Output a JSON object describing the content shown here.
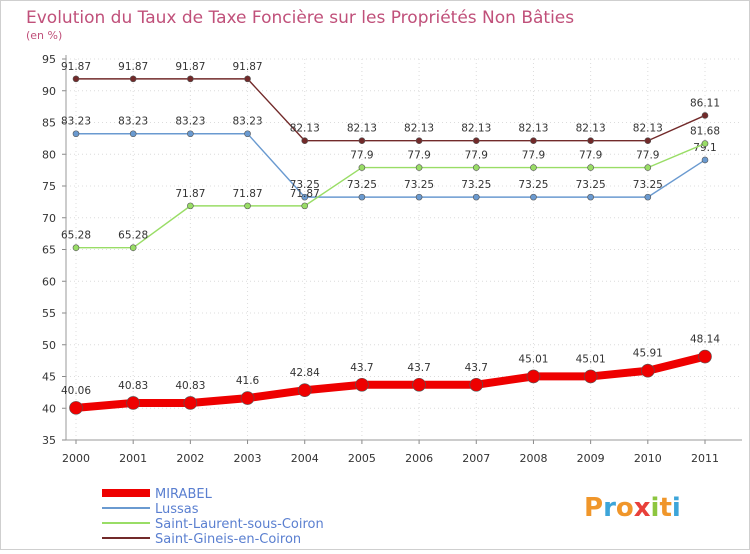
{
  "chart_data": {
    "type": "line",
    "title": "Evolution du Taux de Taxe Foncière sur les Propriétés Non Bâties",
    "subtitle": "(en %)",
    "xlabel": "",
    "ylabel": "",
    "ylim": [
      35,
      95
    ],
    "yticks": [
      35,
      40,
      45,
      50,
      55,
      60,
      65,
      70,
      75,
      80,
      85,
      90,
      95
    ],
    "grid": true,
    "legend_position": "bottom-left",
    "x": [
      "2000",
      "2001",
      "2002",
      "2003",
      "2004",
      "2005",
      "2006",
      "2007",
      "2008",
      "2009",
      "2010",
      "2011"
    ],
    "series": [
      {
        "name": "Saint-Gineis-en-Coiron",
        "color": "#722a2a",
        "values": [
          91.87,
          91.87,
          91.87,
          91.87,
          82.13,
          82.13,
          82.13,
          82.13,
          82.13,
          82.13,
          82.13,
          86.11
        ],
        "labels": [
          "91.87",
          "91.87",
          "91.87",
          "91.87",
          "82.13",
          "82.13",
          "82.13",
          "82.13",
          "82.13",
          "82.13",
          "82.13",
          "86.11"
        ]
      },
      {
        "name": "Lussas",
        "color": "#6a9ad0",
        "values": [
          83.23,
          83.23,
          83.23,
          83.23,
          73.25,
          73.25,
          73.25,
          73.25,
          73.25,
          73.25,
          73.25,
          79.1
        ],
        "labels": [
          "83.23",
          "83.23",
          "83.23",
          "83.23",
          "73.25",
          "73.25",
          "73.25",
          "73.25",
          "73.25",
          "73.25",
          "73.25",
          "79.1"
        ]
      },
      {
        "name": "Saint-Laurent-sous-Coiron",
        "color": "#99dd66",
        "values": [
          65.28,
          65.28,
          71.87,
          71.87,
          71.87,
          77.9,
          77.9,
          77.9,
          77.9,
          77.9,
          77.9,
          81.68
        ],
        "labels": [
          "65.28",
          "65.28",
          "71.87",
          "71.87",
          "71.87",
          "77.9",
          "77.9",
          "77.9",
          "77.9",
          "77.9",
          "77.9",
          "81.68"
        ]
      },
      {
        "name": "MIRABEL",
        "color": "#ee0000",
        "values": [
          40.06,
          40.83,
          40.83,
          41.6,
          42.84,
          43.7,
          43.7,
          43.7,
          45.01,
          45.01,
          45.91,
          48.14
        ],
        "labels": [
          "40.06",
          "40.83",
          "40.83",
          "41.6",
          "42.84",
          "43.7",
          "43.7",
          "43.7",
          "45.01",
          "45.01",
          "45.91",
          "48.14"
        ]
      }
    ],
    "legend": [
      "MIRABEL",
      "Lussas",
      "Saint-Laurent-sous-Coiron",
      "Saint-Gineis-en-Coiron"
    ]
  },
  "logo": {
    "text": "Proxiti"
  }
}
